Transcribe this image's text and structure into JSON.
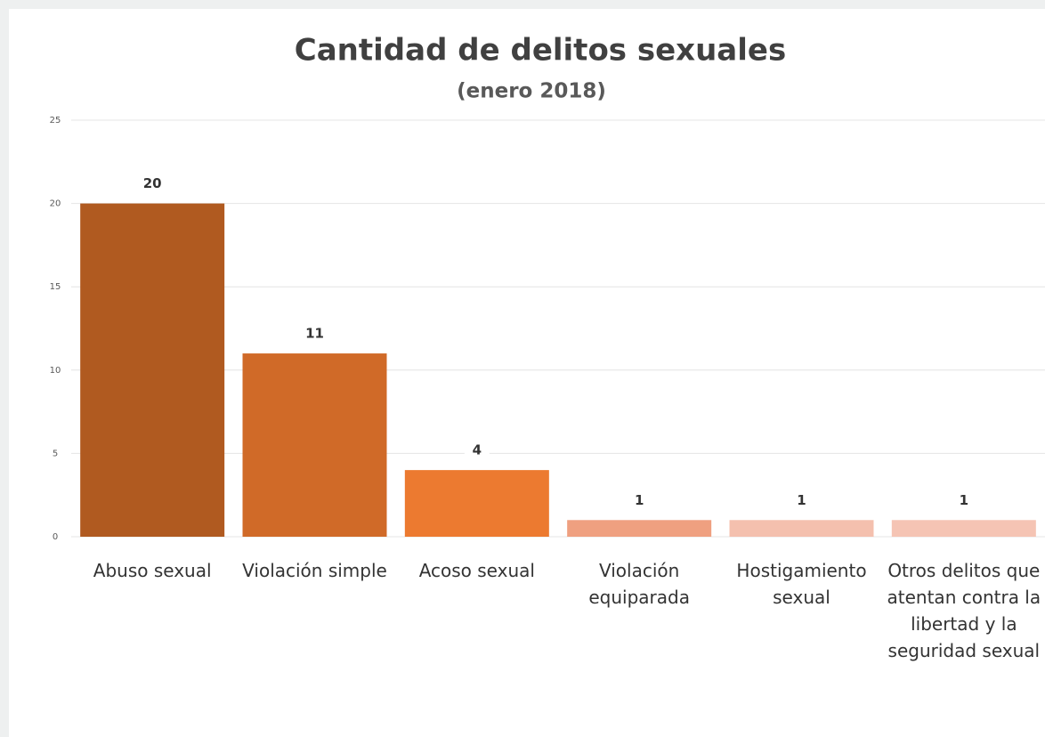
{
  "chart_data": {
    "type": "bar",
    "title": "Cantidad de delitos sexuales",
    "subtitle": "(enero 2018)",
    "categories": [
      "Abuso sexual",
      "Violación simple",
      "Acoso sexual",
      "Violación equiparada",
      "Hostigamiento sexual",
      "Otros delitos que atentan contra la libertad y la seguridad sexual"
    ],
    "values": [
      20,
      11,
      4,
      1,
      1,
      1
    ],
    "colors": [
      "#b05a20",
      "#d06a28",
      "#ec7a30",
      "#efa080",
      "#f4c0ae",
      "#f5c4b4"
    ],
    "ylim": [
      0,
      25
    ],
    "yticks": [
      0,
      5,
      10,
      15,
      20,
      25
    ],
    "grid": true
  }
}
